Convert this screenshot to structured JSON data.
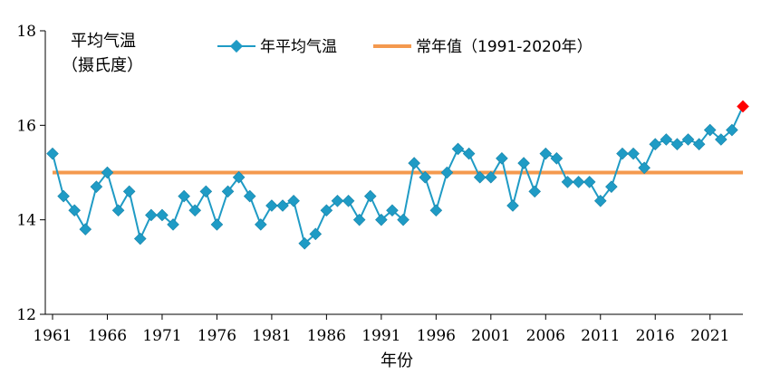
{
  "chart_data": {
    "type": "line",
    "title": "",
    "ylabel_line1": "平均气温",
    "ylabel_line2": "（摄氏度）",
    "xlabel": "年份",
    "ylim": [
      12,
      18
    ],
    "yticks": [
      12,
      14,
      16,
      18
    ],
    "xlim": [
      1961,
      2024
    ],
    "xticks": [
      1961,
      1966,
      1971,
      1976,
      1981,
      1986,
      1991,
      1996,
      2001,
      2006,
      2011,
      2016,
      2021
    ],
    "grid": false,
    "legend_position": "top",
    "colors": {
      "series": "#1f9bc5",
      "marker": "#1f9bc5",
      "last_marker": "#ff0000",
      "normal_line": "#f4994e",
      "axis": "#000000"
    },
    "series": [
      {
        "name": "年平均气温",
        "x": [
          1961,
          1962,
          1963,
          1964,
          1965,
          1966,
          1967,
          1968,
          1969,
          1970,
          1971,
          1972,
          1973,
          1974,
          1975,
          1976,
          1977,
          1978,
          1979,
          1980,
          1981,
          1982,
          1983,
          1984,
          1985,
          1986,
          1987,
          1988,
          1989,
          1990,
          1991,
          1992,
          1993,
          1994,
          1995,
          1996,
          1997,
          1998,
          1999,
          2000,
          2001,
          2002,
          2003,
          2004,
          2005,
          2006,
          2007,
          2008,
          2009,
          2010,
          2011,
          2012,
          2013,
          2014,
          2015,
          2016,
          2017,
          2018,
          2019,
          2020,
          2021,
          2022,
          2023,
          2024
        ],
        "values": [
          15.4,
          14.5,
          14.2,
          13.8,
          14.7,
          15.0,
          14.2,
          14.6,
          13.6,
          14.1,
          14.1,
          13.9,
          14.5,
          14.2,
          14.6,
          13.9,
          14.6,
          14.9,
          14.5,
          13.9,
          14.3,
          14.3,
          14.4,
          13.5,
          13.7,
          14.2,
          14.4,
          14.4,
          14.0,
          14.5,
          14.0,
          14.2,
          14.0,
          15.2,
          14.9,
          14.2,
          15.0,
          15.5,
          15.4,
          14.9,
          14.9,
          15.3,
          14.3,
          15.2,
          14.6,
          15.4,
          15.3,
          14.8,
          14.8,
          14.8,
          14.4,
          14.7,
          15.4,
          15.4,
          15.1,
          15.6,
          15.7,
          15.6,
          15.7,
          15.6,
          15.9,
          15.7,
          15.9,
          16.4
        ]
      },
      {
        "name": "常年值（1991-2020年）",
        "value": 15.0
      }
    ]
  }
}
